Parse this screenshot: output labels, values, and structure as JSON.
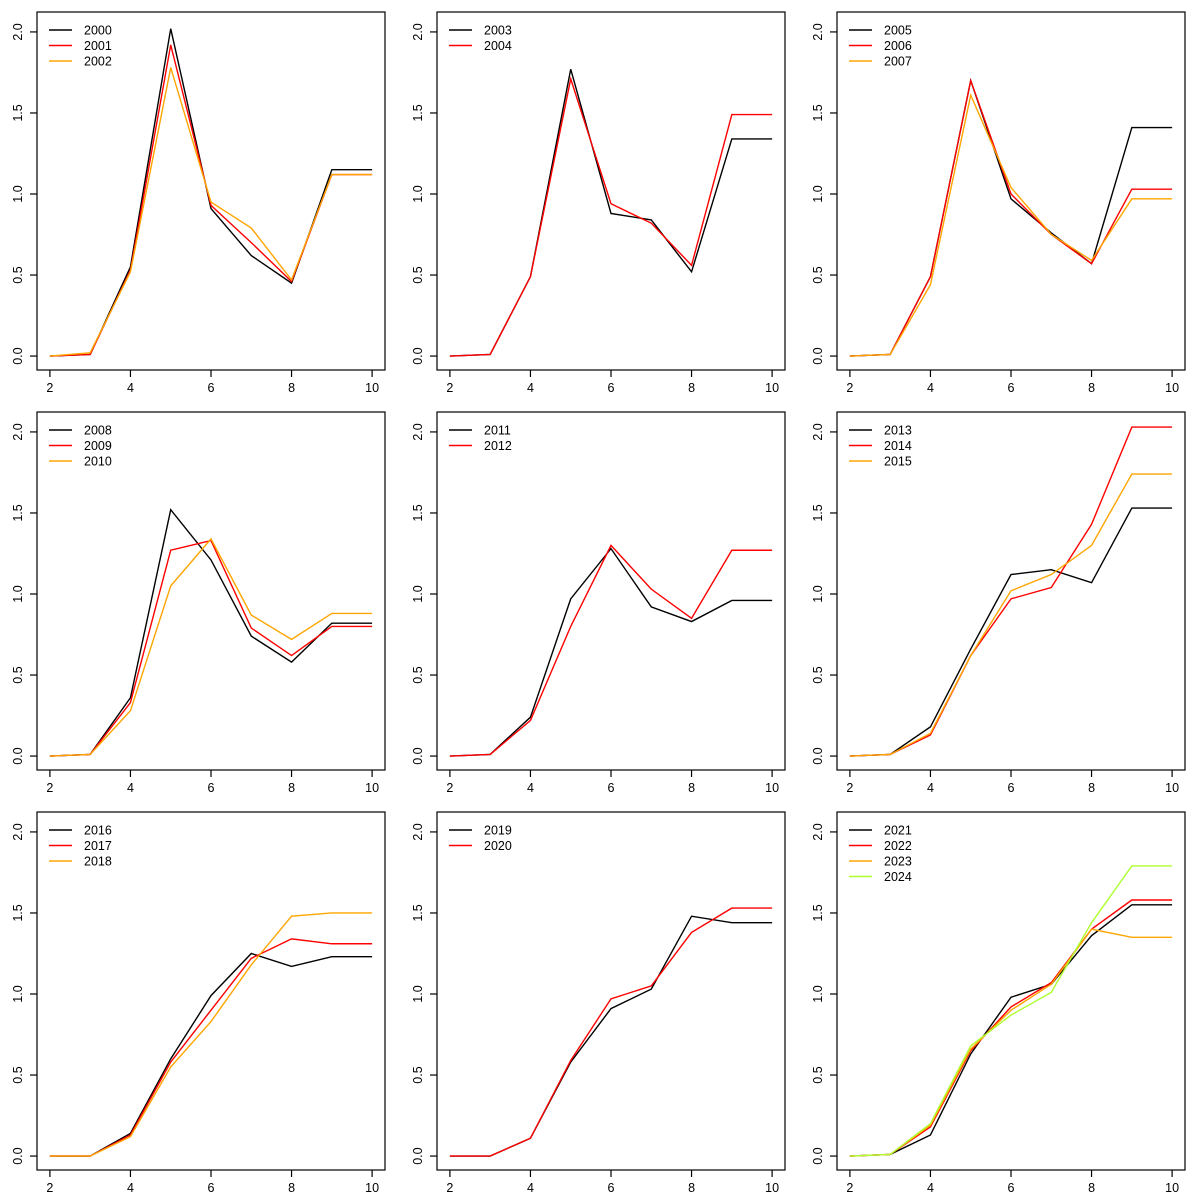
{
  "figure": {
    "background": "#ffffff",
    "rows": 3,
    "cols": 3,
    "panel_size": 400
  },
  "axes": {
    "xlim": [
      1.68,
      10.32
    ],
    "ylim": [
      -0.086,
      2.123
    ],
    "x_ticks": [
      2,
      4,
      6,
      8,
      10
    ],
    "x_tick_labels": [
      "2",
      "4",
      "6",
      "8",
      "10"
    ],
    "y_ticks": [
      0.0,
      0.5,
      1.0,
      1.5,
      2.0
    ],
    "y_tick_labels": [
      "0.0",
      "0.5",
      "1.0",
      "1.5",
      "2.0"
    ],
    "grid": false,
    "legend_position": "topleft"
  },
  "palette": {
    "black": "#000000",
    "red": "#FF0000",
    "orange": "#FFA500",
    "greenyellow": "#ADFF2F"
  },
  "chart_data": [
    {
      "type": "line",
      "title": "",
      "xlabel": "",
      "ylabel": "",
      "x": [
        2,
        3,
        4,
        5,
        6,
        7,
        8,
        9,
        10
      ],
      "series": [
        {
          "name": "2000",
          "color": "#000000",
          "values": [
            0.0,
            0.01,
            0.55,
            2.02,
            0.91,
            0.62,
            0.45,
            1.15,
            1.15
          ]
        },
        {
          "name": "2001",
          "color": "#FF0000",
          "values": [
            0.0,
            0.01,
            0.53,
            1.92,
            0.93,
            0.7,
            0.46,
            1.12,
            1.12
          ]
        },
        {
          "name": "2002",
          "color": "#FFA500",
          "values": [
            0.0,
            0.02,
            0.52,
            1.78,
            0.95,
            0.79,
            0.47,
            1.12,
            1.12
          ]
        }
      ]
    },
    {
      "type": "line",
      "title": "",
      "xlabel": "",
      "ylabel": "",
      "x": [
        2,
        3,
        4,
        5,
        6,
        7,
        8,
        9,
        10
      ],
      "series": [
        {
          "name": "2003",
          "color": "#000000",
          "values": [
            0.0,
            0.01,
            0.49,
            1.77,
            0.88,
            0.84,
            0.52,
            1.34,
            1.34
          ]
        },
        {
          "name": "2004",
          "color": "#FF0000",
          "values": [
            0.0,
            0.01,
            0.49,
            1.71,
            0.94,
            0.82,
            0.56,
            1.49,
            1.49
          ]
        }
      ]
    },
    {
      "type": "line",
      "title": "",
      "xlabel": "",
      "ylabel": "",
      "x": [
        2,
        3,
        4,
        5,
        6,
        7,
        8,
        9,
        10
      ],
      "series": [
        {
          "name": "2005",
          "color": "#000000",
          "values": [
            0.0,
            0.01,
            0.49,
            1.7,
            0.97,
            0.76,
            0.57,
            1.41,
            1.41
          ]
        },
        {
          "name": "2006",
          "color": "#FF0000",
          "values": [
            0.0,
            0.01,
            0.49,
            1.7,
            1.0,
            0.75,
            0.57,
            1.03,
            1.03
          ]
        },
        {
          "name": "2007",
          "color": "#FFA500",
          "values": [
            0.0,
            0.01,
            0.44,
            1.61,
            1.04,
            0.75,
            0.59,
            0.97,
            0.97
          ]
        }
      ]
    },
    {
      "type": "line",
      "title": "",
      "xlabel": "",
      "ylabel": "",
      "x": [
        2,
        3,
        4,
        5,
        6,
        7,
        8,
        9,
        10
      ],
      "series": [
        {
          "name": "2008",
          "color": "#000000",
          "values": [
            0.0,
            0.01,
            0.36,
            1.52,
            1.21,
            0.74,
            0.58,
            0.82,
            0.82
          ]
        },
        {
          "name": "2009",
          "color": "#FF0000",
          "values": [
            0.0,
            0.01,
            0.33,
            1.27,
            1.33,
            0.79,
            0.62,
            0.8,
            0.8
          ]
        },
        {
          "name": "2010",
          "color": "#FFA500",
          "values": [
            0.0,
            0.01,
            0.28,
            1.05,
            1.34,
            0.87,
            0.72,
            0.88,
            0.88
          ]
        }
      ]
    },
    {
      "type": "line",
      "title": "",
      "xlabel": "",
      "ylabel": "",
      "x": [
        2,
        3,
        4,
        5,
        6,
        7,
        8,
        9,
        10
      ],
      "series": [
        {
          "name": "2011",
          "color": "#000000",
          "values": [
            0.0,
            0.01,
            0.24,
            0.97,
            1.28,
            0.92,
            0.83,
            0.96,
            0.96
          ]
        },
        {
          "name": "2012",
          "color": "#FF0000",
          "values": [
            0.0,
            0.01,
            0.22,
            0.8,
            1.3,
            1.03,
            0.85,
            1.27,
            1.27
          ]
        }
      ]
    },
    {
      "type": "line",
      "title": "",
      "xlabel": "",
      "ylabel": "",
      "x": [
        2,
        3,
        4,
        5,
        6,
        7,
        8,
        9,
        10
      ],
      "series": [
        {
          "name": "2013",
          "color": "#000000",
          "values": [
            0.0,
            0.01,
            0.18,
            0.66,
            1.12,
            1.15,
            1.07,
            1.53,
            1.53
          ]
        },
        {
          "name": "2014",
          "color": "#FF0000",
          "values": [
            0.0,
            0.01,
            0.13,
            0.62,
            0.97,
            1.04,
            1.43,
            2.03,
            2.03
          ]
        },
        {
          "name": "2015",
          "color": "#FFA500",
          "values": [
            0.0,
            0.01,
            0.14,
            0.62,
            1.02,
            1.12,
            1.3,
            1.74,
            1.74
          ]
        }
      ]
    },
    {
      "type": "line",
      "title": "",
      "xlabel": "",
      "ylabel": "",
      "x": [
        2,
        3,
        4,
        5,
        6,
        7,
        8,
        9,
        10
      ],
      "series": [
        {
          "name": "2016",
          "color": "#000000",
          "values": [
            0.0,
            0.0,
            0.14,
            0.6,
            0.99,
            1.25,
            1.17,
            1.23,
            1.23
          ]
        },
        {
          "name": "2017",
          "color": "#FF0000",
          "values": [
            0.0,
            0.0,
            0.13,
            0.58,
            0.9,
            1.22,
            1.34,
            1.31,
            1.31
          ]
        },
        {
          "name": "2018",
          "color": "#FFA500",
          "values": [
            0.0,
            0.0,
            0.12,
            0.55,
            0.83,
            1.18,
            1.48,
            1.5,
            1.5
          ]
        }
      ]
    },
    {
      "type": "line",
      "title": "",
      "xlabel": "",
      "ylabel": "",
      "x": [
        2,
        3,
        4,
        5,
        6,
        7,
        8,
        9,
        10
      ],
      "series": [
        {
          "name": "2019",
          "color": "#000000",
          "values": [
            0.0,
            0.0,
            0.11,
            0.58,
            0.91,
            1.03,
            1.48,
            1.44,
            1.44
          ]
        },
        {
          "name": "2020",
          "color": "#FF0000",
          "values": [
            0.0,
            0.0,
            0.11,
            0.59,
            0.97,
            1.05,
            1.38,
            1.53,
            1.53
          ]
        }
      ]
    },
    {
      "type": "line",
      "title": "",
      "xlabel": "",
      "ylabel": "",
      "x": [
        2,
        3,
        4,
        5,
        6,
        7,
        8,
        9,
        10
      ],
      "series": [
        {
          "name": "2021",
          "color": "#000000",
          "values": [
            0.0,
            0.01,
            0.13,
            0.63,
            0.98,
            1.06,
            1.36,
            1.55,
            1.55
          ]
        },
        {
          "name": "2022",
          "color": "#FF0000",
          "values": [
            0.0,
            0.01,
            0.18,
            0.65,
            0.92,
            1.07,
            1.4,
            1.58,
            1.58
          ]
        },
        {
          "name": "2023",
          "color": "#FFA500",
          "values": [
            0.0,
            0.01,
            0.19,
            0.66,
            0.9,
            1.06,
            1.4,
            1.35,
            1.35
          ]
        },
        {
          "name": "2024",
          "color": "#ADFF2F",
          "values": [
            0.0,
            0.01,
            0.2,
            0.68,
            0.87,
            1.01,
            1.44,
            1.79,
            1.79
          ]
        }
      ]
    }
  ]
}
